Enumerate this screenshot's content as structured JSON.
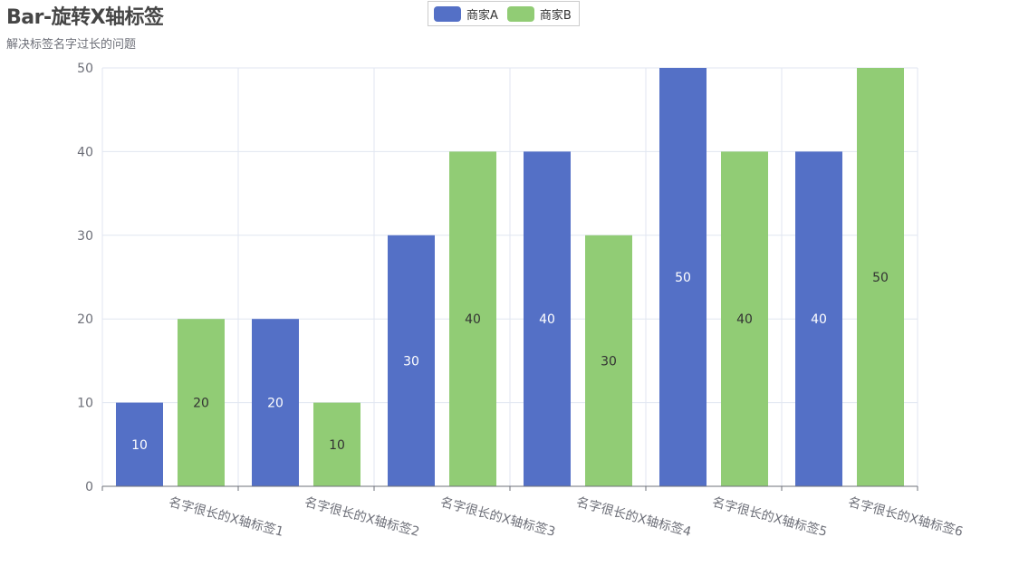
{
  "chart_data": {
    "type": "bar",
    "title": "Bar-旋转X轴标签",
    "subtitle": "解决标签名字过长的问题",
    "categories": [
      "名字很长的X轴标签1",
      "名字很长的X轴标签2",
      "名字很长的X轴标签3",
      "名字很长的X轴标签4",
      "名字很长的X轴标签5",
      "名字很长的X轴标签6"
    ],
    "series": [
      {
        "name": "商家A",
        "color": "#5470c6",
        "values": [
          10,
          20,
          30,
          40,
          50,
          40
        ]
      },
      {
        "name": "商家B",
        "color": "#91cc75",
        "values": [
          20,
          10,
          40,
          30,
          40,
          50
        ]
      }
    ],
    "ylim": [
      0,
      50
    ],
    "yticks": [
      0,
      10,
      20,
      30,
      40,
      50
    ],
    "xlabel": "",
    "ylabel": "",
    "grid": true,
    "legend_position": "top-center",
    "x_label_rotation": -15
  }
}
